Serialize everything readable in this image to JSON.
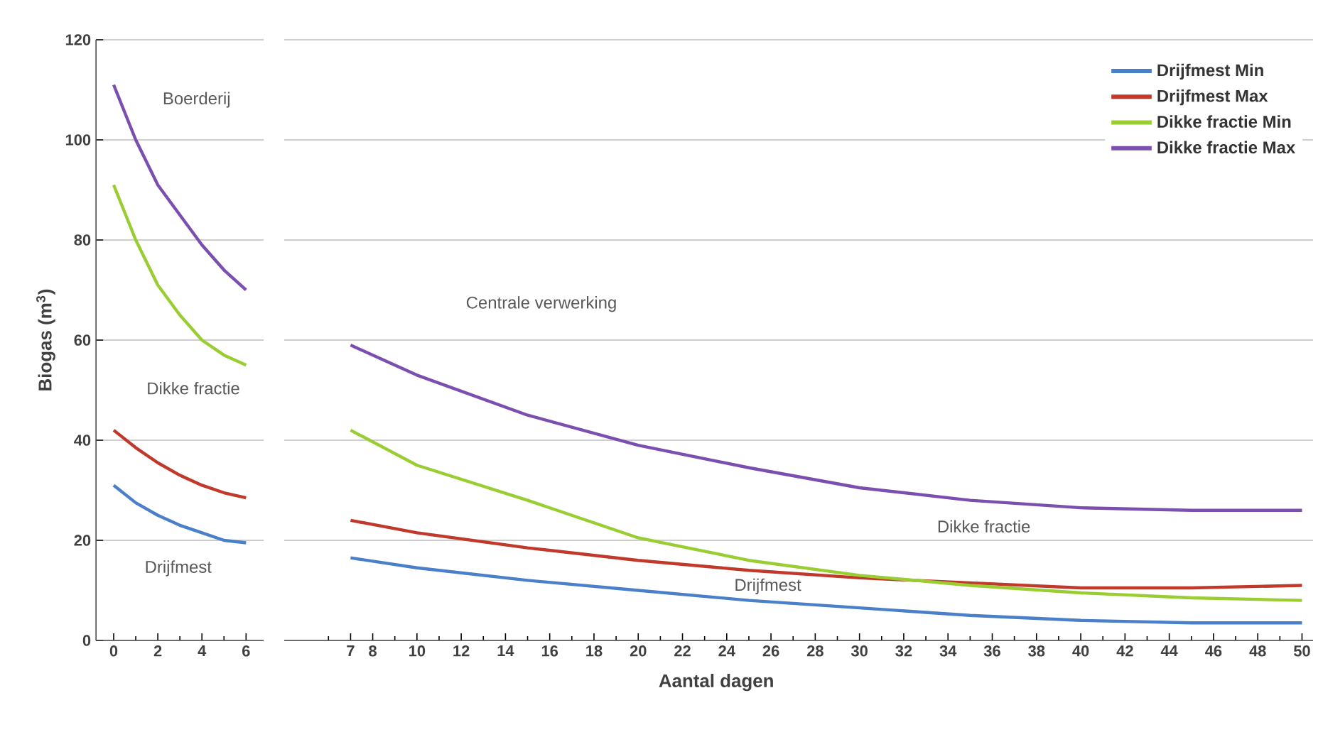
{
  "chart_data": [
    {
      "type": "line",
      "ylabel": "Biogas (m$^{3}$)",
      "xlim": [
        -0.8,
        6.8
      ],
      "xticks": [
        0,
        2,
        4,
        6
      ],
      "ylim": [
        0,
        120
      ],
      "yticks": [
        0,
        20,
        40,
        60,
        80,
        100,
        120
      ],
      "grid": "y",
      "legend": false,
      "series": [
        {
          "color": "#4a7fc9",
          "x": [
            0,
            1,
            2,
            3,
            4,
            5,
            6
          ],
          "values": [
            31,
            27.5,
            25,
            23,
            21.5,
            20,
            19.5
          ]
        },
        {
          "color": "#c0392b",
          "x": [
            0,
            1,
            2,
            3,
            4,
            5,
            6
          ],
          "values": [
            42,
            38.5,
            35.5,
            33,
            31,
            29.5,
            28.5
          ]
        },
        {
          "color": "#9acd32",
          "x": [
            0,
            1,
            2,
            3,
            4,
            5,
            6
          ],
          "values": [
            91,
            80,
            71,
            65,
            60,
            57,
            55
          ]
        },
        {
          "color": "#7b4fb0",
          "x": [
            0,
            1,
            2,
            3,
            4,
            5,
            6
          ],
          "values": [
            111,
            100,
            91,
            85,
            79,
            74,
            70
          ]
        }
      ],
      "annotations": [
        "Boerderij",
        "Dikke fractie",
        "Drijfmest"
      ]
    },
    {
      "type": "line",
      "xlabel": "Aantal dagen",
      "xlim": [
        4,
        50.5
      ],
      "xticks": [
        7,
        8,
        10,
        12,
        14,
        16,
        18,
        20,
        22,
        24,
        26,
        28,
        30,
        32,
        34,
        36,
        38,
        40,
        42,
        44,
        46,
        48,
        50
      ],
      "ylim": [
        0,
        120
      ],
      "yticks": [
        0,
        20,
        40,
        60,
        80,
        100,
        120
      ],
      "grid": "y",
      "tick_labels": "x",
      "legend": "top right",
      "series": [
        {
          "name": "Drijfmest Min",
          "color": "#4a7fc9",
          "x": [
            7,
            10,
            15,
            20,
            25,
            30,
            35,
            40,
            45,
            50
          ],
          "values": [
            16.5,
            14.5,
            12,
            10,
            8,
            6.5,
            5,
            4,
            3.5,
            3.5
          ]
        },
        {
          "name": "Drijfmest Max",
          "color": "#c0392b",
          "x": [
            7,
            10,
            15,
            20,
            25,
            30,
            35,
            40,
            45,
            50
          ],
          "values": [
            24,
            21.5,
            18.5,
            16,
            14,
            12.5,
            11.5,
            10.5,
            10.5,
            11
          ]
        },
        {
          "name": "Dikke fractie Min",
          "color": "#9acd32",
          "x": [
            7,
            10,
            15,
            20,
            25,
            30,
            35,
            40,
            45,
            50
          ],
          "values": [
            42,
            35,
            28,
            20.5,
            16,
            13,
            11,
            9.5,
            8.5,
            8
          ]
        },
        {
          "name": "Dikke fractie Max",
          "color": "#7b4fb0",
          "x": [
            7,
            10,
            15,
            20,
            25,
            30,
            35,
            40,
            45,
            50
          ],
          "values": [
            59,
            53,
            45,
            39,
            34.5,
            30.5,
            28,
            26.5,
            26,
            26
          ]
        }
      ],
      "annotations": [
        "Centrale verwerking",
        "Dikke fractie",
        "Drijfmest"
      ]
    }
  ]
}
